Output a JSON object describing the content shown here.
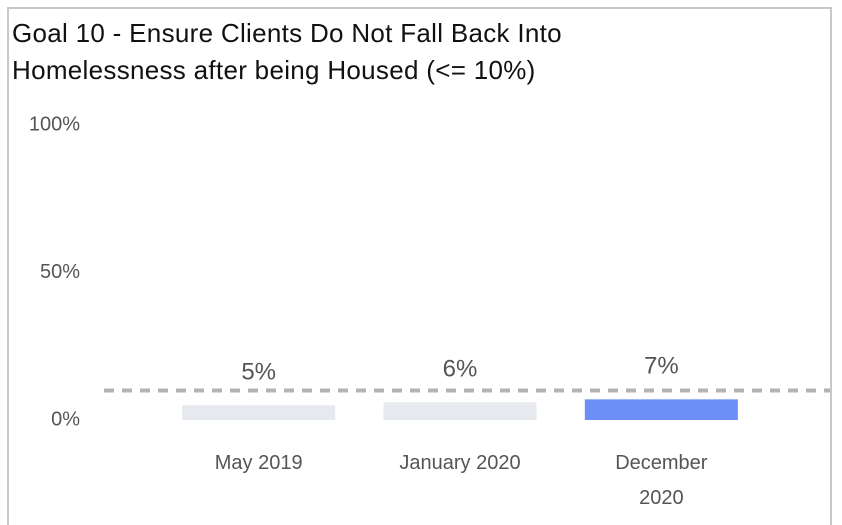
{
  "chart_data": {
    "type": "bar",
    "title_lines": [
      "Goal 10 - Ensure Clients Do Not Fall Back Into",
      "Homelessness after being Housed (<= 10%)"
    ],
    "categories": [
      "May 2019",
      "January 2020",
      "December 2020"
    ],
    "values": [
      5,
      6,
      7
    ],
    "value_labels": [
      "5%",
      "6%",
      "7%"
    ],
    "colors": [
      "#e6e9ed",
      "#e6e9ed",
      "#6b8ff7"
    ],
    "target": 10,
    "target_color": "#b3b3b3",
    "ylim": [
      0,
      100
    ],
    "yticks": [
      {
        "value": 0,
        "label": "0%"
      },
      {
        "value": 50,
        "label": "50%"
      },
      {
        "value": 100,
        "label": "100%"
      }
    ],
    "grid": false
  }
}
